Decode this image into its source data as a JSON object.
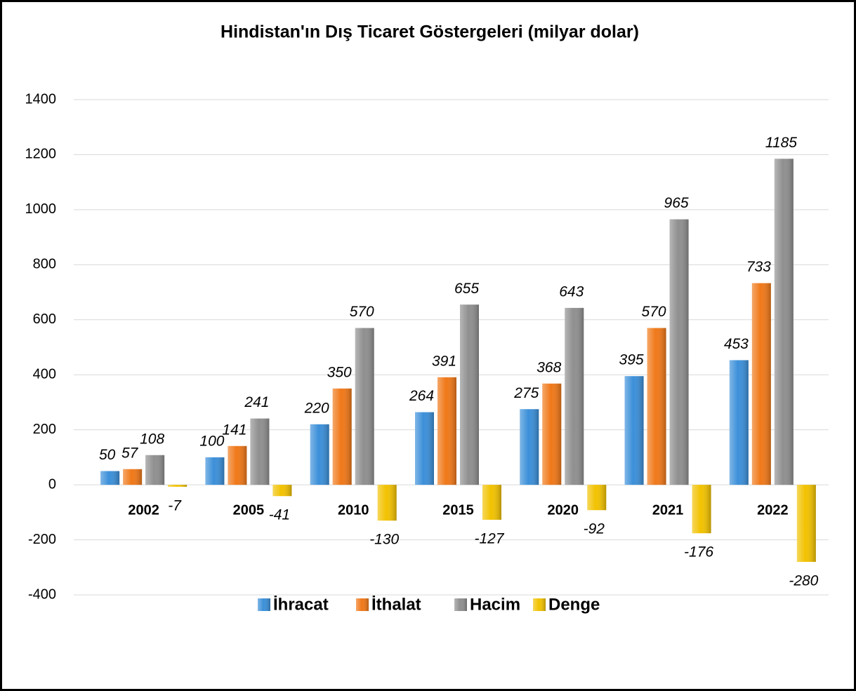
{
  "chart_data": {
    "type": "bar",
    "title": "Hindistan'ın Dış Ticaret Göstergeleri  (milyar dolar)",
    "categories": [
      "2002",
      "2005",
      "2010",
      "2015",
      "2020",
      "2021",
      "2022"
    ],
    "series": [
      {
        "name": "İhracat",
        "color": "#3b8fd9",
        "values": [
          50,
          100,
          220,
          264,
          275,
          395,
          453
        ]
      },
      {
        "name": "İthalat",
        "color": "#f07818",
        "values": [
          57,
          141,
          350,
          391,
          368,
          570,
          733
        ]
      },
      {
        "name": "Hacim",
        "color": "#8f8f8f",
        "values": [
          108,
          241,
          570,
          655,
          643,
          965,
          1185
        ]
      },
      {
        "name": "Denge",
        "color": "#f2c200",
        "values": [
          -7,
          -41,
          -130,
          -127,
          -92,
          -176,
          -280
        ]
      }
    ],
    "ylim": [
      -400,
      1400
    ],
    "yticks": [
      -400,
      -200,
      0,
      200,
      400,
      600,
      800,
      1000,
      1200,
      1400
    ],
    "grid": true,
    "legend": "bottom"
  }
}
